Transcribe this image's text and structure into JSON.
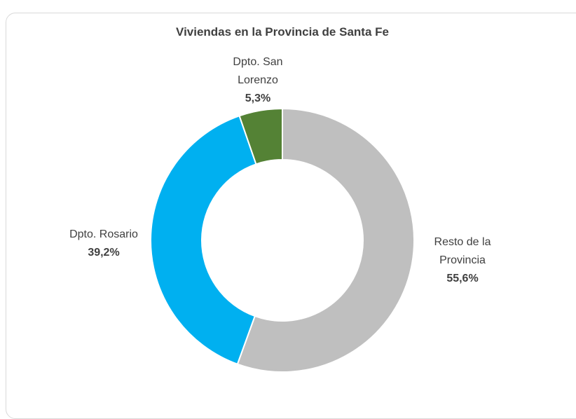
{
  "chart_data": {
    "type": "donut",
    "title": "Viviendas en la Provincia de Santa Fe",
    "categories": [
      "Resto de la Provincia",
      "Dpto. Rosario",
      "Dpto. San Lorenzo"
    ],
    "values": [
      55.6,
      39.2,
      5.3
    ],
    "value_labels": [
      "55,6%",
      "39,2%",
      "5,3%"
    ],
    "colors": [
      "#bfbfbf",
      "#00b0f0",
      "#548235"
    ]
  }
}
